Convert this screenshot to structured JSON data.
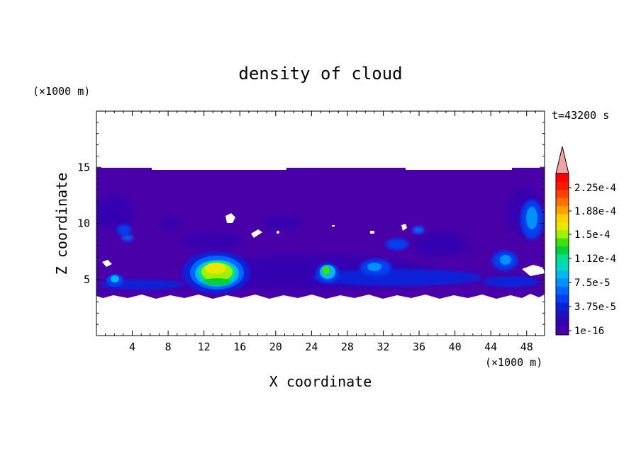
{
  "chart_data": {
    "type": "heatmap",
    "title": "density of cloud",
    "time_label": "t=43200 s",
    "xlabel": "X coordinate",
    "ylabel": "Z coordinate",
    "x_unit": "(×1000 m)",
    "y_unit": "(×1000 m)",
    "xlim": [
      0,
      50
    ],
    "ylim": [
      0,
      20
    ],
    "x_ticks": [
      4,
      8,
      12,
      16,
      20,
      24,
      28,
      32,
      36,
      40,
      44,
      48
    ],
    "y_ticks": [
      5,
      10,
      15
    ],
    "colorbar": {
      "tick_labels": [
        "2.25e-4",
        "1.88e-4",
        "1.5e-4",
        "1.12e-4",
        "7.5e-5",
        "3.75e-5",
        "1e-16"
      ],
      "tick_values": [
        0.000225,
        0.000188,
        0.00015,
        0.000112,
        7.5e-05,
        3.75e-05,
        1e-16
      ],
      "levels": [
        "#4a00a8",
        "#3500b0",
        "#2010c0",
        "#0a20d8",
        "#0040f0",
        "#0066ff",
        "#0090ff",
        "#00b8f0",
        "#00d8c0",
        "#00e090",
        "#00d040",
        "#40e000",
        "#a0f000",
        "#e8e800",
        "#ffd000",
        "#ffa000",
        "#ff7000",
        "#ff4000",
        "#ff1800",
        "#ff0000"
      ],
      "extend_color": "#f4a3a3"
    },
    "features": [
      {
        "name": "cloud layer base",
        "x_range": [
          0,
          50
        ],
        "z_range": [
          3.5,
          14.8
        ],
        "value": 1e-16
      },
      {
        "name": "strong cell",
        "x": 13.3,
        "z": 5.8,
        "peak": 0.00015
      },
      {
        "name": "cell",
        "x": 25.5,
        "z": 5.7,
        "peak": 0.000112
      },
      {
        "name": "cell",
        "x": 30.8,
        "z": 6.2,
        "peak": 7.5e-05
      },
      {
        "name": "cell",
        "x": 45.6,
        "z": 6.7,
        "peak": 7.5e-05
      },
      {
        "name": "cell",
        "x": 48.4,
        "z": 11.0,
        "peak": 7.5e-05
      },
      {
        "name": "cell",
        "x": 1.8,
        "z": 5.0,
        "peak": 7.5e-05
      }
    ]
  }
}
